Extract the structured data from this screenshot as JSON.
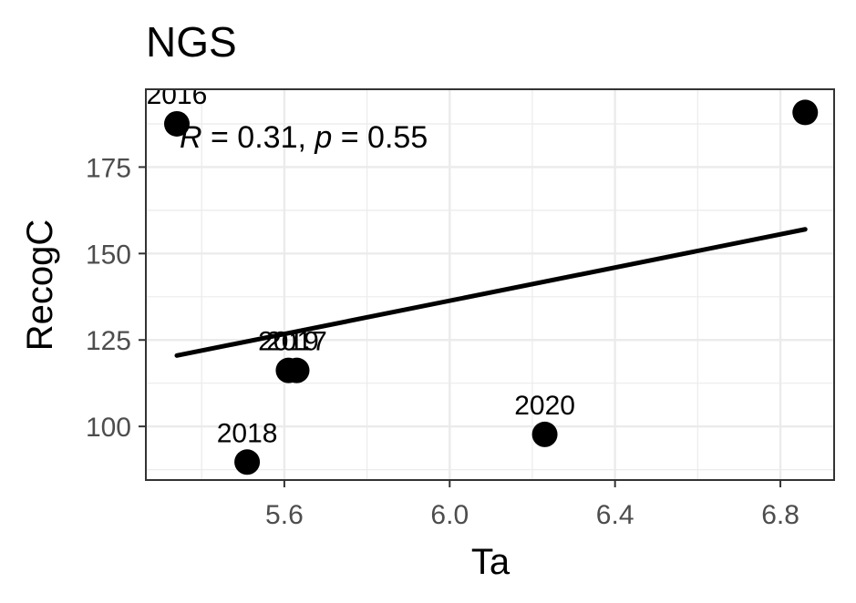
{
  "chart_data": {
    "type": "scatter",
    "title": "NGS",
    "xlabel": "Ta",
    "ylabel": "RecogC",
    "xlim": [
      5.265,
      6.93
    ],
    "ylim": [
      84.5,
      197.5
    ],
    "x_ticks": [
      5.6,
      6.0,
      6.4,
      6.8
    ],
    "x_tick_labels": [
      "5.6",
      "6.0",
      "6.4",
      "6.8"
    ],
    "y_ticks": [
      100,
      125,
      150,
      175
    ],
    "y_tick_labels": [
      "100",
      "125",
      "150",
      "175"
    ],
    "grid": true,
    "points": [
      {
        "x": 5.34,
        "y": 187.5,
        "label": "2016"
      },
      {
        "x": 5.61,
        "y": 116.2,
        "label": "2019"
      },
      {
        "x": 5.63,
        "y": 116.2,
        "label": "2017"
      },
      {
        "x": 5.51,
        "y": 89.7,
        "label": "2018"
      },
      {
        "x": 6.23,
        "y": 97.7,
        "label": "2020"
      },
      {
        "x": 6.86,
        "y": 190.8,
        "label": ""
      }
    ],
    "regression_line": {
      "x": [
        5.34,
        6.86
      ],
      "y": [
        120.5,
        157.0
      ]
    },
    "annotation": {
      "r_symbol": "R",
      "r_text": " = 0.31, ",
      "p_symbol": "p",
      "p_text": " = 0.55"
    }
  }
}
